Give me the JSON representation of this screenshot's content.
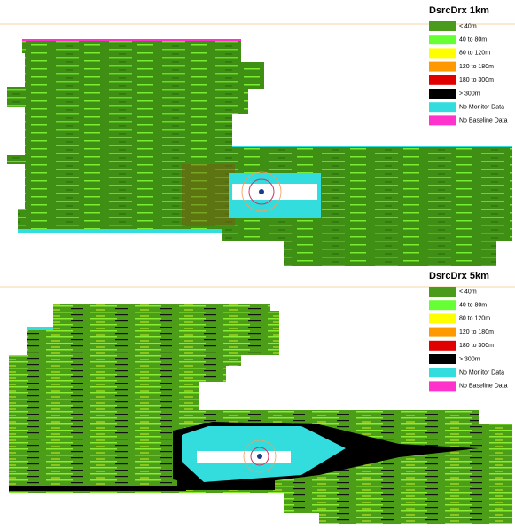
{
  "panels": [
    {
      "legend": {
        "title": "DsrcDrx 1km",
        "items": [
          {
            "label": "< 40m",
            "color": "#4a9a1c"
          },
          {
            "label": "40 to 80m",
            "color": "#66ff33"
          },
          {
            "label": "80 to 120m",
            "color": "#ffff00"
          },
          {
            "label": "120 to 180m",
            "color": "#ff9900"
          },
          {
            "label": "180 to 300m",
            "color": "#e00000"
          },
          {
            "label": "> 300m",
            "color": "#000000"
          },
          {
            "label": "No Monitor Data",
            "color": "#33dddd"
          },
          {
            "label": "No Baseline Data",
            "color": "#ff33cc"
          }
        ]
      }
    },
    {
      "legend": {
        "title": "DsrcDrx 5km",
        "items": [
          {
            "label": "< 40m",
            "color": "#4a9a1c"
          },
          {
            "label": "40 to 80m",
            "color": "#66ff33"
          },
          {
            "label": "80 to 120m",
            "color": "#ffff00"
          },
          {
            "label": "120 to 180m",
            "color": "#ff9900"
          },
          {
            "label": "180 to 300m",
            "color": "#e00000"
          },
          {
            "label": "> 300m",
            "color": "#000000"
          },
          {
            "label": "No Monitor Data",
            "color": "#33dddd"
          },
          {
            "label": "No Baseline Data",
            "color": "#ff33cc"
          }
        ]
      }
    }
  ]
}
